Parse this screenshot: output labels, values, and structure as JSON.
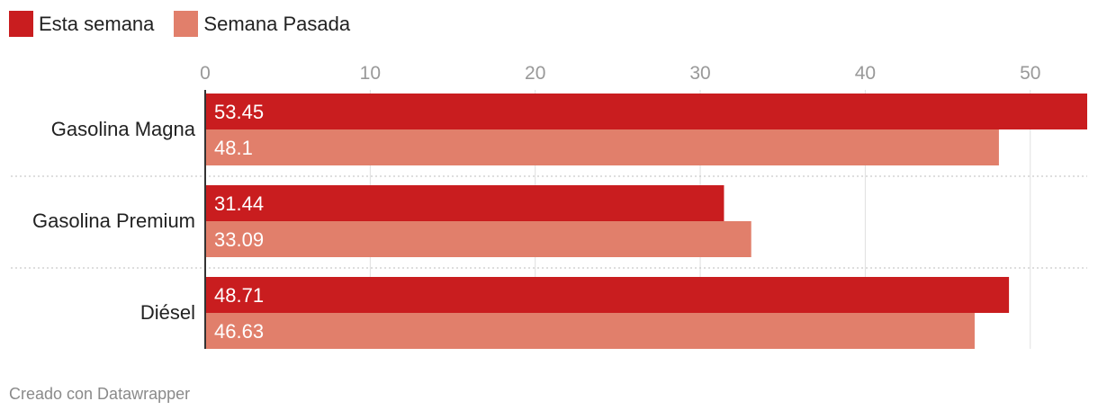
{
  "legend": {
    "series1_label": "Esta semana",
    "series2_label": "Semana Pasada"
  },
  "colors": {
    "series1": "#c91d1f",
    "series2": "#e17f6b",
    "grid": "#e0e0e0",
    "axis_text": "#999999",
    "label_text": "#222222",
    "value_text": "#ffffff"
  },
  "chart_data": {
    "type": "bar",
    "orientation": "horizontal",
    "categories": [
      "Gasolina Magna",
      "Gasolina Premium",
      "Diésel"
    ],
    "series": [
      {
        "name": "Esta semana",
        "values": [
          53.45,
          31.44,
          48.71
        ]
      },
      {
        "name": "Semana Pasada",
        "values": [
          48.1,
          33.09,
          46.63
        ]
      }
    ],
    "ticks": [
      0,
      10,
      20,
      30,
      40,
      50
    ],
    "xlim": [
      0,
      53.45
    ],
    "grid": true,
    "legend_position": "top-left"
  },
  "footer": {
    "credit": "Creado con Datawrapper"
  }
}
